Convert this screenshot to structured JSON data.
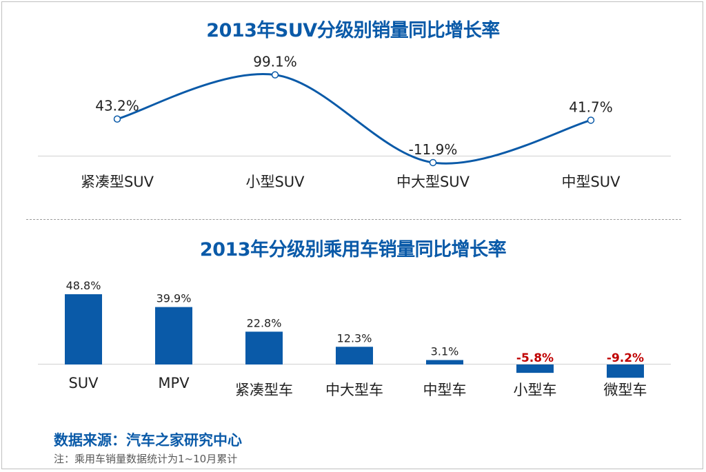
{
  "chart_data": [
    {
      "type": "line",
      "title": "2013年SUV分级别销量同比增长率",
      "categories": [
        "紧凑型SUV",
        "小型SUV",
        "中大型SUV",
        "中型SUV"
      ],
      "values": [
        43.2,
        99.1,
        -11.9,
        41.7
      ],
      "data_labels": [
        "43.2%",
        "99.1%",
        "-11.9%",
        "41.7%"
      ],
      "line_color": "#0a5aa8",
      "smooth": true
    },
    {
      "type": "bar",
      "title": "2013年分级别乘用车销量同比增长率",
      "categories": [
        "SUV",
        "MPV",
        "紧凑型车",
        "中大型车",
        "中型车",
        "小型车",
        "微型车"
      ],
      "values": [
        48.8,
        39.9,
        22.8,
        12.3,
        3.1,
        -5.8,
        -9.2
      ],
      "data_labels": [
        "48.8%",
        "39.9%",
        "22.8%",
        "12.3%",
        "3.1%",
        "-5.8%",
        "-9.2%"
      ],
      "bar_color": "#0a5aa8",
      "negative_label_color": "#c00000"
    }
  ],
  "footer": {
    "source": "数据来源：汽车之家研究中心",
    "note": "注：乘用车销量数据统计为1~10月累计"
  }
}
